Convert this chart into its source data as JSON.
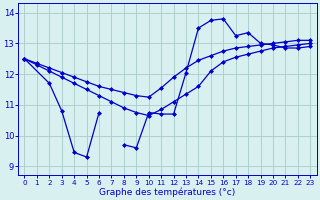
{
  "color": "#0000cc",
  "bg_color": "#d8f0f0",
  "grid_color": "#aacccc",
  "xlabel": "Graphe des températures (°c)",
  "xlim": [
    -0.5,
    23.5
  ],
  "ylim": [
    8.7,
    14.3
  ],
  "yticks": [
    9,
    10,
    11,
    12,
    13,
    14
  ],
  "xticks": [
    0,
    1,
    2,
    3,
    4,
    5,
    6,
    7,
    8,
    9,
    10,
    11,
    12,
    13,
    14,
    15,
    16,
    17,
    18,
    19,
    20,
    21,
    22,
    23
  ],
  "line_flat_x": [
    0,
    1,
    2,
    3,
    4,
    5,
    6,
    7,
    8,
    9,
    10,
    11,
    12,
    13,
    14,
    15,
    16,
    17,
    18,
    19,
    20,
    21,
    22,
    23
  ],
  "line_flat_y": [
    12.5,
    12.3,
    12.1,
    11.9,
    11.7,
    11.5,
    11.3,
    11.1,
    10.9,
    10.75,
    10.65,
    10.85,
    11.1,
    11.35,
    11.6,
    12.1,
    12.4,
    12.55,
    12.65,
    12.75,
    12.85,
    12.9,
    12.95,
    13.0
  ],
  "line_mid_x": [
    0,
    1,
    2,
    3,
    4,
    5,
    6,
    7,
    8,
    9,
    10,
    11,
    12,
    13,
    14,
    15,
    16,
    17,
    18,
    19,
    20,
    21,
    22,
    23
  ],
  "line_mid_y": [
    12.5,
    12.35,
    12.2,
    12.05,
    11.9,
    11.75,
    11.6,
    11.5,
    11.4,
    11.3,
    11.25,
    11.55,
    11.9,
    12.2,
    12.45,
    12.6,
    12.75,
    12.85,
    12.9,
    12.95,
    13.0,
    13.05,
    13.1,
    13.1
  ],
  "line_jagged_x": [
    0,
    2,
    3,
    4,
    5,
    6,
    7,
    8,
    9,
    10,
    11,
    12,
    13,
    14,
    15,
    16,
    17,
    18,
    19,
    20,
    21,
    22,
    23
  ],
  "line_jagged_y": [
    12.5,
    11.7,
    10.8,
    9.45,
    9.3,
    10.75,
    null,
    9.7,
    9.6,
    10.75,
    10.7,
    10.7,
    12.05,
    13.5,
    13.75,
    13.8,
    13.25,
    13.35,
    13.0,
    12.95,
    12.85,
    12.85,
    12.9
  ]
}
